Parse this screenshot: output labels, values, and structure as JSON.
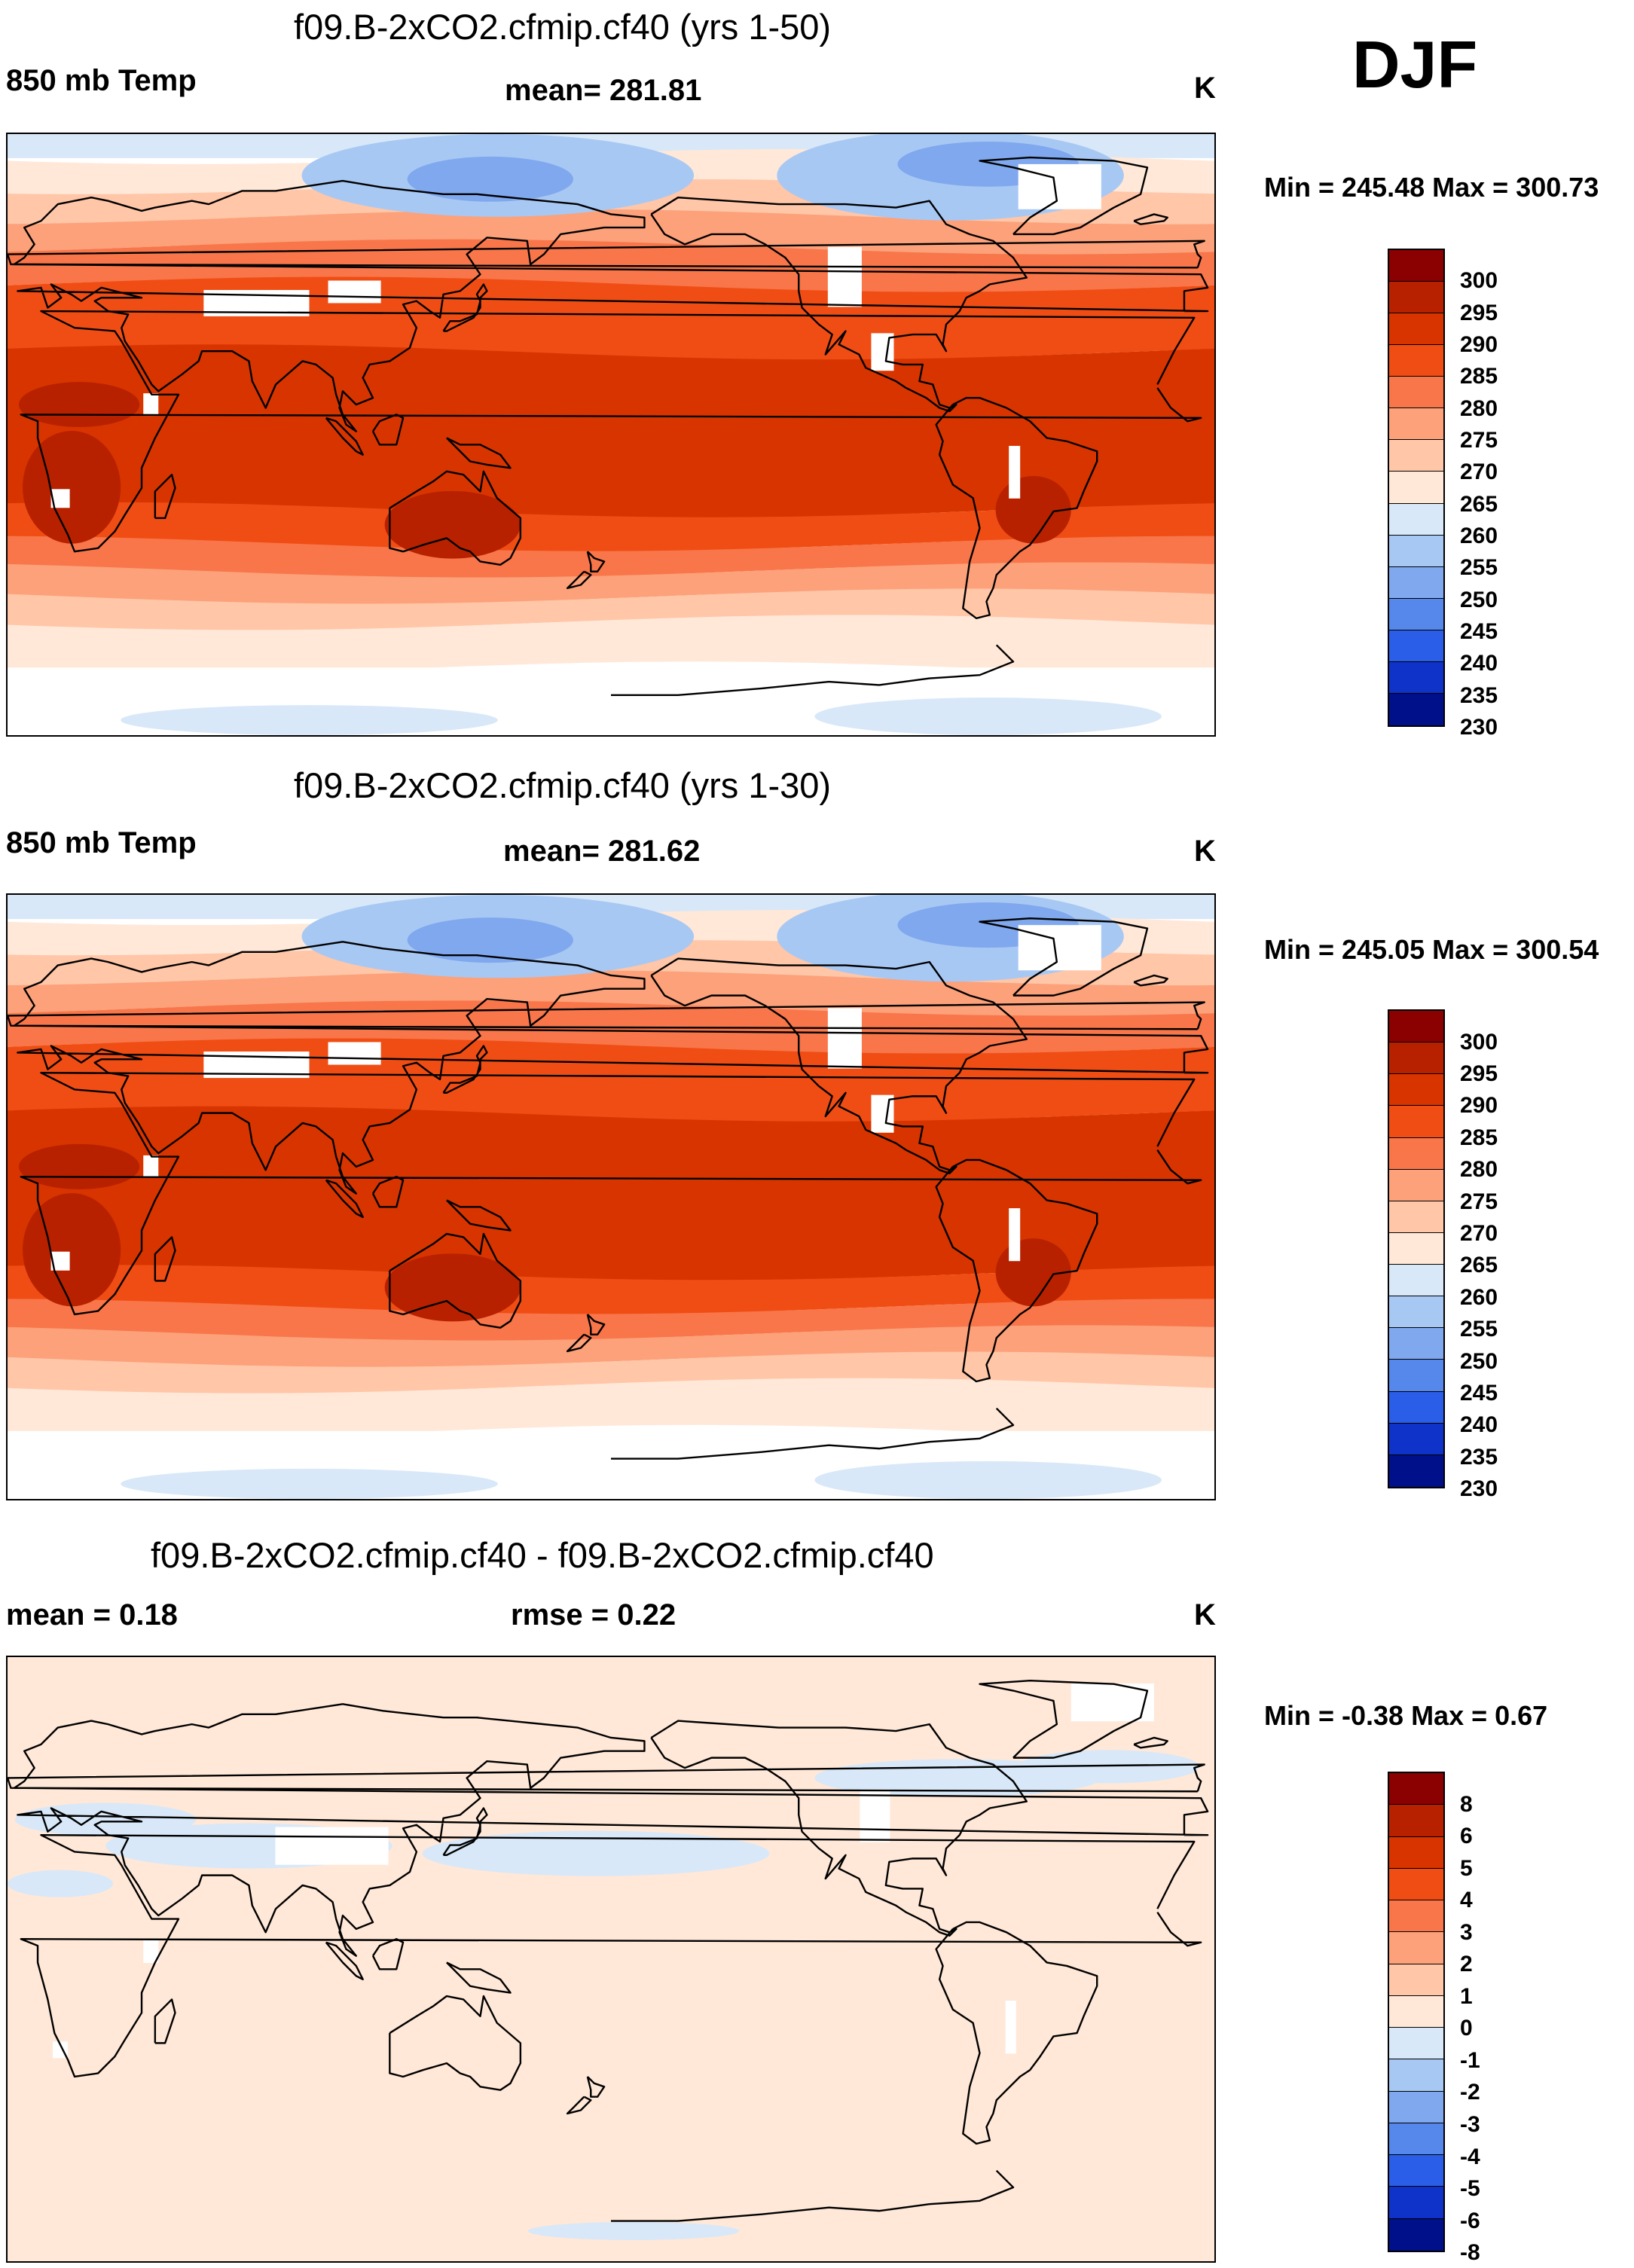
{
  "season": "DJF",
  "panels": [
    {
      "title": "f09.B-2xCO2.cfmip.cf40 (yrs 1-50)",
      "left_label": "850 mb Temp",
      "center_label": "mean= 281.81",
      "units": "K",
      "minmax": "Min = 245.48 Max = 300.73",
      "colorbar_labels": [
        "300",
        "295",
        "290",
        "285",
        "280",
        "275",
        "270",
        "265",
        "260",
        "255",
        "250",
        "245",
        "240",
        "235",
        "230"
      ],
      "colorbar_colors": [
        "#8b0000",
        "#b82100",
        "#d83400",
        "#f04d14",
        "#f8764a",
        "#fca17a",
        "#ffc6a8",
        "#ffe8d8",
        "#d8e8f8",
        "#a8c8f4",
        "#80a8ee",
        "#5588ea",
        "#2a5ee8",
        "#0f33c8",
        "#00108a"
      ],
      "kind": "abs",
      "mask": {
        "arctic": 0.06,
        "eq": 0.0,
        "south": 0.06
      }
    },
    {
      "title": "f09.B-2xCO2.cfmip.cf40 (yrs 1-30)",
      "left_label": "850 mb Temp",
      "center_label": "mean= 281.62",
      "units": "K",
      "minmax": "Min = 245.05 Max = 300.54",
      "colorbar_labels": [
        "300",
        "295",
        "290",
        "285",
        "280",
        "275",
        "270",
        "265",
        "260",
        "255",
        "250",
        "245",
        "240",
        "235",
        "230"
      ],
      "colorbar_colors": [
        "#8b0000",
        "#b82100",
        "#d83400",
        "#f04d14",
        "#f8764a",
        "#fca17a",
        "#ffc6a8",
        "#ffe8d8",
        "#d8e8f8",
        "#a8c8f4",
        "#80a8ee",
        "#5588ea",
        "#2a5ee8",
        "#0f33c8",
        "#00108a"
      ],
      "kind": "abs",
      "mask": {
        "arctic": 0.06,
        "eq": 0.0,
        "south": 0.06
      }
    },
    {
      "title": "f09.B-2xCO2.cfmip.cf40 - f09.B-2xCO2.cfmip.cf40",
      "left_label": "mean =   0.18",
      "center_label": "rmse =   0.22",
      "units": "K",
      "minmax": "Min =  -0.38 Max =   0.67",
      "colorbar_labels": [
        "8",
        "6",
        "5",
        "4",
        "3",
        "2",
        "1",
        "0",
        "-1",
        "-2",
        "-3",
        "-4",
        "-5",
        "-6",
        "-8"
      ],
      "colorbar_colors": [
        "#8b0000",
        "#b82100",
        "#d83400",
        "#f04d14",
        "#f8764a",
        "#fca17a",
        "#ffc6a8",
        "#ffe8d8",
        "#d8e8f8",
        "#a8c8f4",
        "#80a8ee",
        "#5588ea",
        "#2a5ee8",
        "#0f33c8",
        "#00108a"
      ],
      "kind": "diff",
      "mask": {
        "arctic": 0.0,
        "eq": 0.0,
        "south": 0.0
      }
    }
  ]
}
